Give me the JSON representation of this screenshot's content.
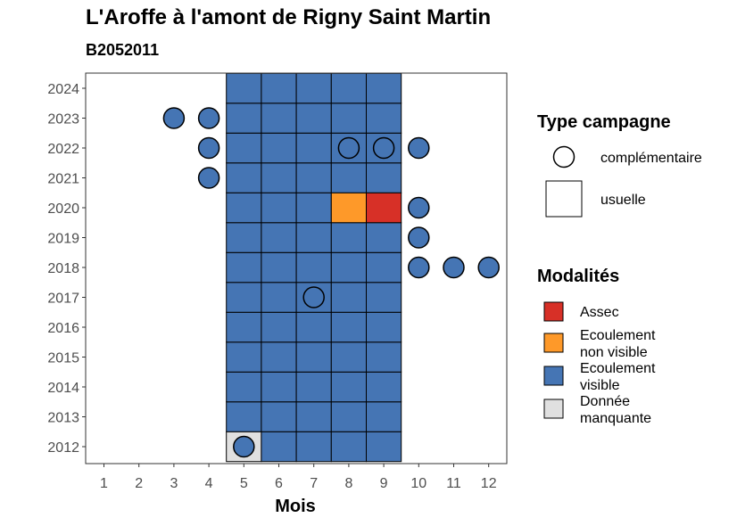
{
  "chart_data": {
    "type": "heatmap",
    "title": "L'Aroffe à l'amont de Rigny Saint Martin",
    "subtitle": "B2052011",
    "xlabel": "Mois",
    "ylabel": "",
    "x_ticks": [
      "1",
      "2",
      "3",
      "4",
      "5",
      "6",
      "7",
      "8",
      "9",
      "10",
      "11",
      "12"
    ],
    "y_ticks": [
      "2012",
      "2013",
      "2014",
      "2015",
      "2016",
      "2017",
      "2018",
      "2019",
      "2020",
      "2021",
      "2022",
      "2023",
      "2024"
    ],
    "grid": false,
    "legend_position": "right",
    "legend_type": {
      "title": "Type campagne",
      "items": [
        {
          "key": "complementaire",
          "label": "complémentaire",
          "shape": "circle"
        },
        {
          "key": "usuelle",
          "label": "usuelle",
          "shape": "square"
        }
      ]
    },
    "legend_modalites": {
      "title": "Modalités",
      "items": [
        {
          "key": "assec",
          "lines": [
            "Assec"
          ],
          "color": "#d73027"
        },
        {
          "key": "ecoulement_non_visible",
          "lines": [
            "Ecoulement",
            "non visible"
          ],
          "color": "#fe9929"
        },
        {
          "key": "ecoulement_visible",
          "lines": [
            "Ecoulement",
            "visible"
          ],
          "color": "#4575b4"
        },
        {
          "key": "donnee_manquante",
          "lines": [
            "Donnée",
            "manquante"
          ],
          "color": "#e0e0e0"
        }
      ]
    },
    "usuelle": {
      "years": [
        2012,
        2013,
        2014,
        2015,
        2016,
        2017,
        2018,
        2019,
        2020,
        2021,
        2022,
        2023,
        2024
      ],
      "months": [
        5,
        6,
        7,
        8,
        9
      ],
      "rows": [
        [
          "donnee_manquante",
          "ecoulement_visible",
          "ecoulement_visible",
          "ecoulement_visible",
          "ecoulement_visible"
        ],
        [
          "ecoulement_visible",
          "ecoulement_visible",
          "ecoulement_visible",
          "ecoulement_visible",
          "ecoulement_visible"
        ],
        [
          "ecoulement_visible",
          "ecoulement_visible",
          "ecoulement_visible",
          "ecoulement_visible",
          "ecoulement_visible"
        ],
        [
          "ecoulement_visible",
          "ecoulement_visible",
          "ecoulement_visible",
          "ecoulement_visible",
          "ecoulement_visible"
        ],
        [
          "ecoulement_visible",
          "ecoulement_visible",
          "ecoulement_visible",
          "ecoulement_visible",
          "ecoulement_visible"
        ],
        [
          "ecoulement_visible",
          "ecoulement_visible",
          "ecoulement_visible",
          "ecoulement_visible",
          "ecoulement_visible"
        ],
        [
          "ecoulement_visible",
          "ecoulement_visible",
          "ecoulement_visible",
          "ecoulement_visible",
          "ecoulement_visible"
        ],
        [
          "ecoulement_visible",
          "ecoulement_visible",
          "ecoulement_visible",
          "ecoulement_visible",
          "ecoulement_visible"
        ],
        [
          "ecoulement_visible",
          "ecoulement_visible",
          "ecoulement_visible",
          "ecoulement_non_visible",
          "assec"
        ],
        [
          "ecoulement_visible",
          "ecoulement_visible",
          "ecoulement_visible",
          "ecoulement_visible",
          "ecoulement_visible"
        ],
        [
          "ecoulement_visible",
          "ecoulement_visible",
          "ecoulement_visible",
          "ecoulement_visible",
          "ecoulement_visible"
        ],
        [
          "ecoulement_visible",
          "ecoulement_visible",
          "ecoulement_visible",
          "ecoulement_visible",
          "ecoulement_visible"
        ],
        [
          "ecoulement_visible",
          "ecoulement_visible",
          "ecoulement_visible",
          "ecoulement_visible",
          "ecoulement_visible"
        ]
      ]
    },
    "complementaire": [
      {
        "year": 2023,
        "month": 3,
        "modalite": "ecoulement_visible"
      },
      {
        "year": 2023,
        "month": 4,
        "modalite": "ecoulement_visible"
      },
      {
        "year": 2022,
        "month": 4,
        "modalite": "ecoulement_visible"
      },
      {
        "year": 2022,
        "month": 8,
        "modalite": "ecoulement_visible"
      },
      {
        "year": 2022,
        "month": 9,
        "modalite": "ecoulement_visible"
      },
      {
        "year": 2022,
        "month": 10,
        "modalite": "ecoulement_visible"
      },
      {
        "year": 2021,
        "month": 4,
        "modalite": "ecoulement_visible"
      },
      {
        "year": 2020,
        "month": 10,
        "modalite": "ecoulement_visible"
      },
      {
        "year": 2019,
        "month": 10,
        "modalite": "ecoulement_visible"
      },
      {
        "year": 2018,
        "month": 10,
        "modalite": "ecoulement_visible"
      },
      {
        "year": 2018,
        "month": 11,
        "modalite": "ecoulement_visible"
      },
      {
        "year": 2018,
        "month": 12,
        "modalite": "ecoulement_visible"
      },
      {
        "year": 2017,
        "month": 7,
        "modalite": "ecoulement_visible"
      },
      {
        "year": 2012,
        "month": 5,
        "modalite": "ecoulement_visible"
      }
    ]
  }
}
